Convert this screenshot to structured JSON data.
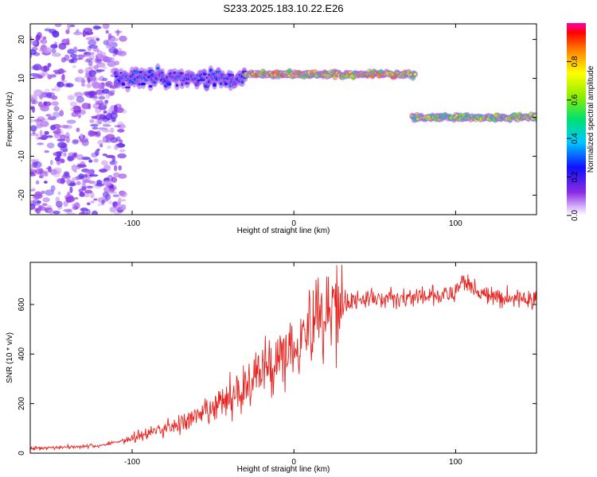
{
  "title": "S233.2025.183.10.22.E26",
  "colors": {
    "axis": "#000000",
    "snr_line": "#e8211d",
    "spectrum_low": "#9b4dff",
    "spectrum_high": "#ff0000"
  },
  "chart_data": [
    {
      "type": "heatmap",
      "xlabel": "Height of straight line (km)",
      "ylabel": "Frequency (Hz)",
      "xlim": [
        -163,
        150
      ],
      "ylim": [
        -25,
        24
      ],
      "xticks": [
        -100,
        0,
        100
      ],
      "yticks": [
        -20,
        -10,
        0,
        10,
        20
      ],
      "colorbar": {
        "label": "Normalized spectral amplitude",
        "range": [
          0,
          1
        ],
        "ticks": [
          "0.0",
          "0.2",
          "0.4",
          "0.6",
          "0.8"
        ],
        "colormap": "rainbow (violet → red, white at zero)"
      },
      "features": [
        {
          "name": "noise",
          "x_range": [
            -163,
            -105
          ],
          "freq_range": [
            -25,
            24
          ],
          "amplitude": 0.1
        },
        {
          "name": "upper trace",
          "x_range": [
            -110,
            -30
          ],
          "freq_center": 10,
          "freq_spread": 3,
          "amplitude": 0.25
        },
        {
          "name": "upper trace",
          "x_range": [
            -30,
            75
          ],
          "freq_center": 11,
          "freq_spread": 1,
          "amplitude": 0.7
        },
        {
          "name": "lower trace",
          "x_range": [
            73,
            150
          ],
          "freq_center": 0,
          "freq_spread": 1,
          "amplitude": 0.6
        }
      ]
    },
    {
      "type": "line",
      "xlabel": "Height of straight line (km)",
      "ylabel": "SNR (10 * v/v)",
      "xlim": [
        -163,
        150
      ],
      "ylim": [
        0,
        770
      ],
      "xticks": [
        -100,
        0,
        100
      ],
      "yticks": [
        0,
        200,
        400,
        600
      ],
      "series": [
        {
          "x": [
            -163,
            -140,
            -120,
            -100,
            -80,
            -60,
            -50,
            -40,
            -30,
            -20,
            -10,
            0,
            10,
            20,
            30,
            40,
            60,
            80,
            100,
            104,
            120,
            150
          ],
          "y": [
            20,
            25,
            30,
            60,
            100,
            140,
            180,
            220,
            270,
            330,
            380,
            450,
            510,
            580,
            610,
            620,
            625,
            630,
            640,
            700,
            630,
            620
          ]
        }
      ]
    }
  ]
}
